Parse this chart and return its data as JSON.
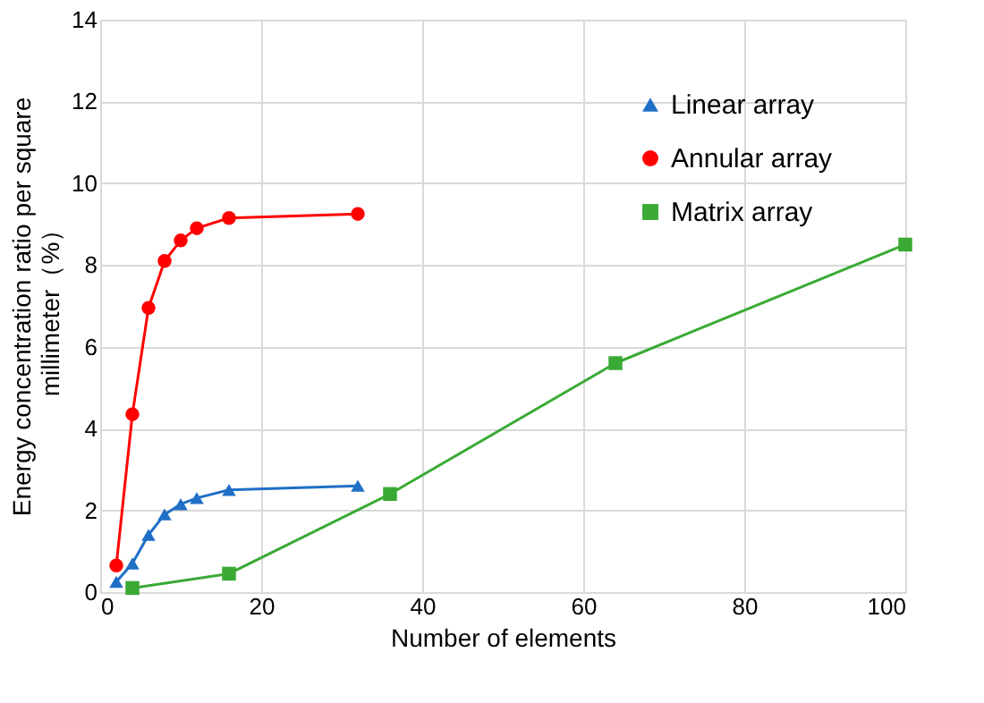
{
  "chart_data": {
    "type": "line",
    "xlabel": "Number of elements",
    "ylabel": "Energy concentration ratio per square\nmillimeter（%）",
    "xlim": [
      0,
      100
    ],
    "xticks": [
      0,
      20,
      40,
      60,
      80,
      100
    ],
    "ylim": [
      0,
      14
    ],
    "yticks": [
      0,
      2,
      4,
      6,
      8,
      10,
      12,
      14
    ],
    "grid": true,
    "legend": "top right",
    "series": [
      {
        "name": "Linear array",
        "color": "#1f6fc6",
        "marker": "triangle",
        "x": [
          2,
          4,
          6,
          8,
          10,
          12,
          16,
          32
        ],
        "values": [
          0.25,
          0.7,
          1.4,
          1.9,
          2.15,
          2.3,
          2.5,
          2.6
        ]
      },
      {
        "name": "Annular array",
        "color": "#ff0000",
        "marker": "circle",
        "x": [
          2,
          4,
          6,
          8,
          10,
          12,
          16,
          32
        ],
        "values": [
          0.65,
          4.35,
          6.95,
          8.1,
          8.6,
          8.9,
          9.15,
          9.25
        ]
      },
      {
        "name": "Matrix array",
        "color": "#3aaa35",
        "marker": "square",
        "x": [
          4,
          16,
          36,
          64,
          100
        ],
        "values": [
          0.1,
          0.45,
          2.4,
          5.6,
          8.5
        ]
      }
    ]
  }
}
